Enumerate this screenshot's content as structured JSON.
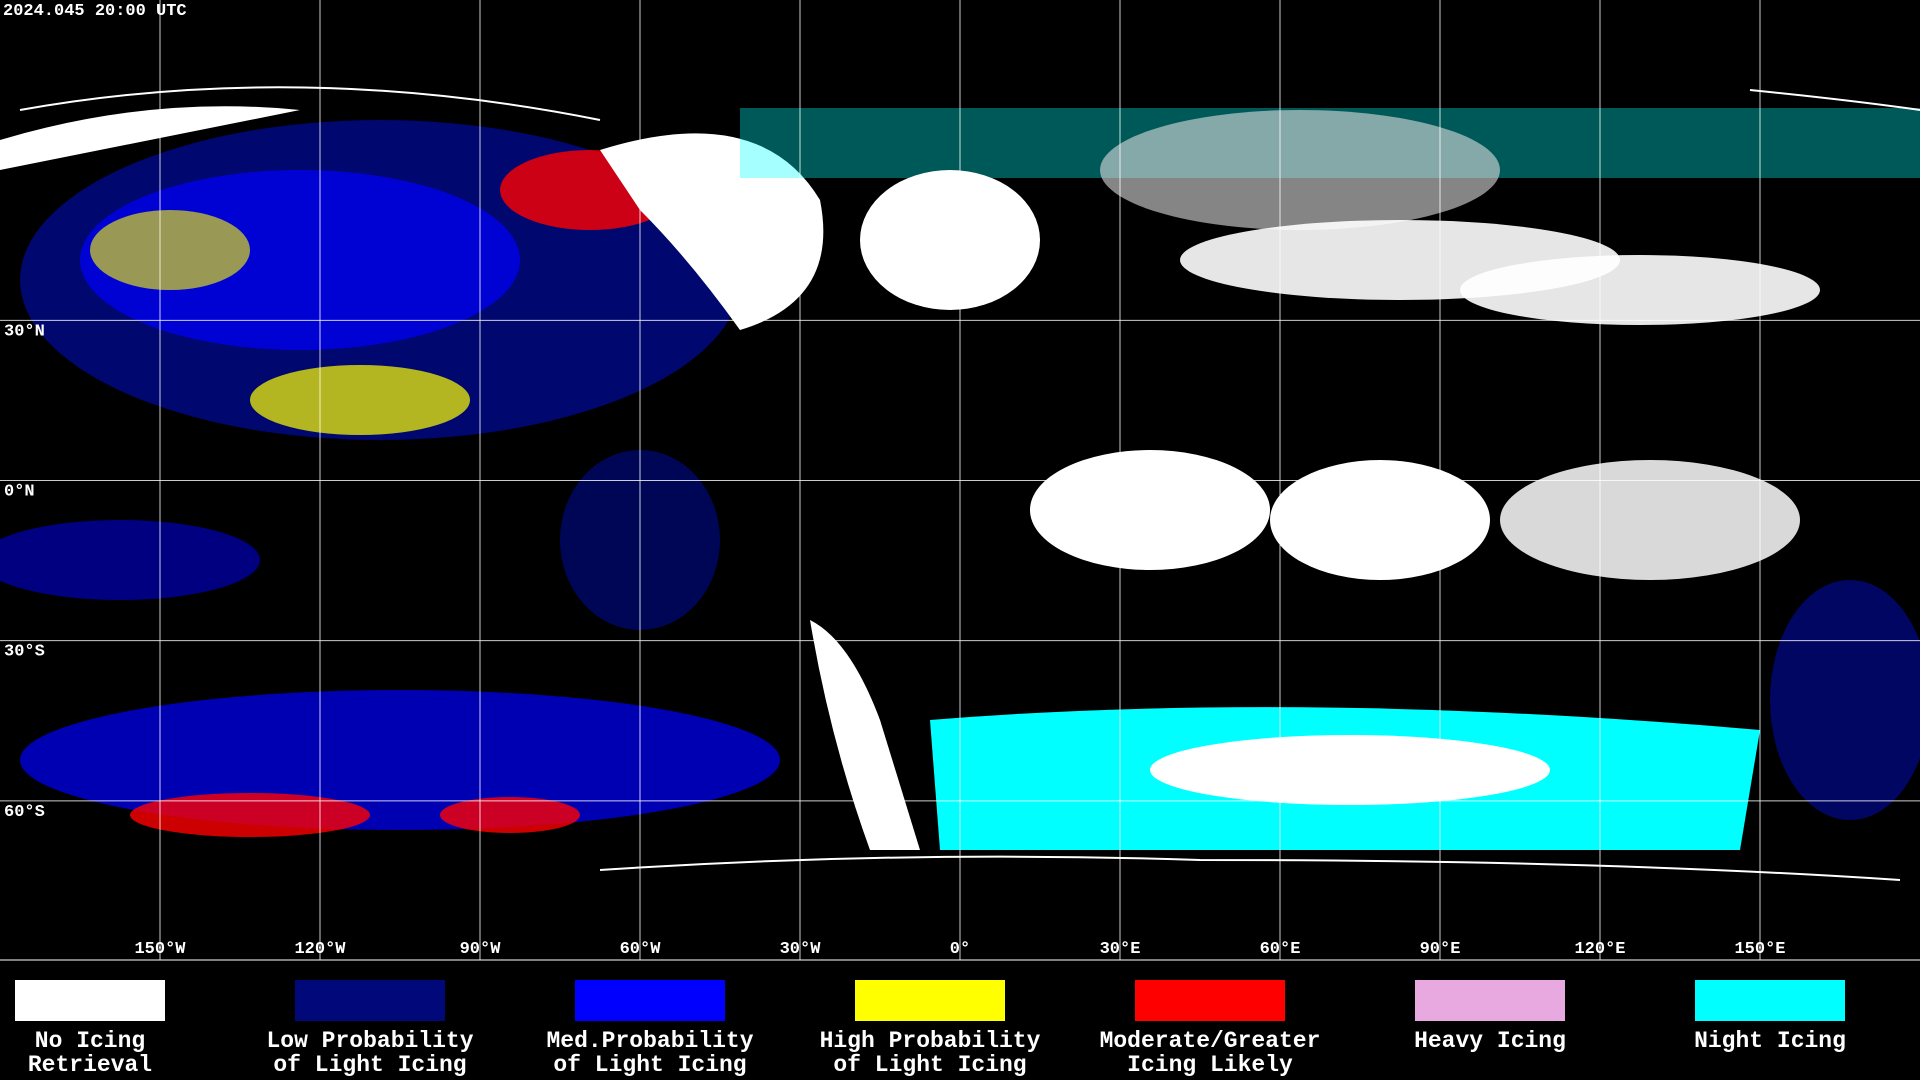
{
  "timestamp": "2024.045 20:00 UTC",
  "lat_labels": [
    {
      "value": 30,
      "label": "30°N"
    },
    {
      "value": 0,
      "label": "0°N"
    },
    {
      "value": -30,
      "label": "30°S"
    },
    {
      "value": -60,
      "label": "60°S"
    }
  ],
  "lon_labels": [
    {
      "value": -150,
      "label": "150°W"
    },
    {
      "value": -120,
      "label": "120°W"
    },
    {
      "value": -90,
      "label": "90°W"
    },
    {
      "value": -60,
      "label": "60°W"
    },
    {
      "value": -30,
      "label": "30°W"
    },
    {
      "value": 0,
      "label": "0°"
    },
    {
      "value": 30,
      "label": "30°E"
    },
    {
      "value": 60,
      "label": "60°E"
    },
    {
      "value": 90,
      "label": "90°E"
    },
    {
      "value": 120,
      "label": "120°E"
    },
    {
      "value": 150,
      "label": "150°E"
    }
  ],
  "legend": [
    {
      "color": "#ffffff",
      "lines": [
        "No Icing",
        "Retrieval"
      ]
    },
    {
      "color": "#00087a",
      "lines": [
        "Low Probability",
        "of Light Icing"
      ]
    },
    {
      "color": "#0000ff",
      "lines": [
        "Med.Probability",
        "of Light Icing"
      ]
    },
    {
      "color": "#ffff00",
      "lines": [
        "High Probability",
        "of Light Icing"
      ]
    },
    {
      "color": "#ff0000",
      "lines": [
        "Moderate/Greater",
        "Icing Likely"
      ]
    },
    {
      "color": "#e8a8e0",
      "lines": [
        "Heavy Icing"
      ]
    },
    {
      "color": "#00ffff",
      "lines": [
        "Night Icing"
      ]
    }
  ]
}
